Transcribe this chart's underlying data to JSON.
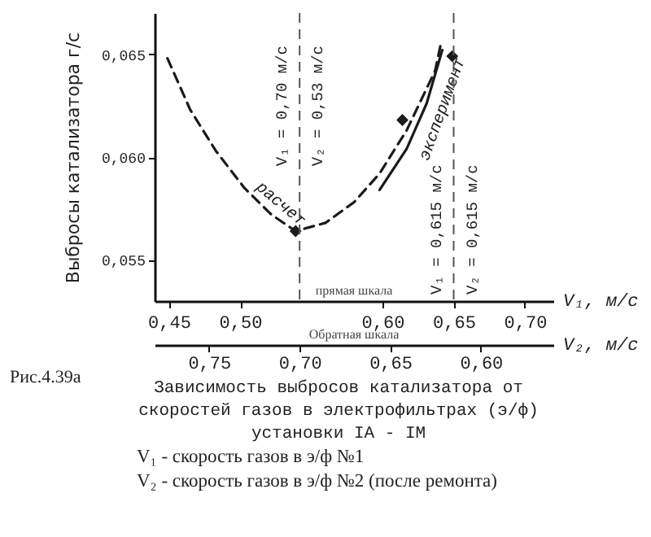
{
  "chart_data": {
    "type": "line",
    "title": "Зависимость выбросов катализатора от скоростей газов в электрофильтрах (э/ф) установки IA - IM",
    "ylabel": "Выбросы катализатора   г/с",
    "xlabel": "V₁, м/с",
    "x2label": "V₂, м/с",
    "xlim": [
      0.44,
      0.72
    ],
    "xticks": [
      {
        "value": 0.45,
        "label": "0,45"
      },
      {
        "value": 0.5,
        "label": "0,50"
      },
      {
        "value": 0.6,
        "label": "0,60"
      },
      {
        "value": 0.65,
        "label": "0,65"
      },
      {
        "value": 0.7,
        "label": "0,70"
      }
    ],
    "x2lim": [
      0.78,
      0.56
    ],
    "x2ticks": [
      {
        "value": 0.75,
        "label": "0,75"
      },
      {
        "value": 0.7,
        "label": "0,70"
      },
      {
        "value": 0.65,
        "label": "0,65"
      },
      {
        "value": 0.6,
        "label": "0,60"
      }
    ],
    "ylim": [
      0.053,
      0.067
    ],
    "yticks": [
      {
        "value": 0.055,
        "label": "0,055"
      },
      {
        "value": 0.06,
        "label": "0,060"
      },
      {
        "value": 0.065,
        "label": "0,065"
      }
    ],
    "grid": false,
    "series": [
      {
        "name": "расчет",
        "line_style": "dashed",
        "color": "#1a1a1a",
        "x": [
          0.449,
          0.465,
          0.483,
          0.503,
          0.522,
          0.539,
          0.56,
          0.58,
          0.598,
          0.617,
          0.637,
          0.641
        ],
        "values": [
          0.0648,
          0.0623,
          0.0603,
          0.0585,
          0.0572,
          0.0564,
          0.0568,
          0.0578,
          0.0592,
          0.0613,
          0.0642,
          0.0655
        ]
      },
      {
        "name": "эксперимент",
        "line_style": "solid",
        "color": "#1a1a1a",
        "x": [
          0.598,
          0.617,
          0.631,
          0.642
        ],
        "values": [
          0.0584,
          0.0604,
          0.0626,
          0.0652
        ]
      },
      {
        "type": "scatter",
        "marker": "diamond",
        "color": "#1a1a1a",
        "x": [
          0.539,
          0.614,
          0.649
        ],
        "values": [
          0.0564,
          0.0618,
          0.0649
        ]
      }
    ],
    "ref_lines": [
      {
        "axis": "x2",
        "value": 0.7,
        "color": "#555555",
        "line_style": "dashed",
        "label": "V₁ = 0,70 м/с"
      },
      {
        "axis": "x2",
        "value": 0.615,
        "color": "#555555",
        "line_style": "dashed",
        "label": "V₁ = 0,615 м/с"
      }
    ],
    "annotations": [
      "V₂ = 0,53 м/с",
      "V₂ = 0,615 м/с",
      "прямая шкала",
      "Обратная шкала",
      "Рис.4.39а",
      "V₁ - скорость газов в э/ф №1",
      "V₂ - скорость газов в э/ф №2 (после ремонта)"
    ]
  }
}
